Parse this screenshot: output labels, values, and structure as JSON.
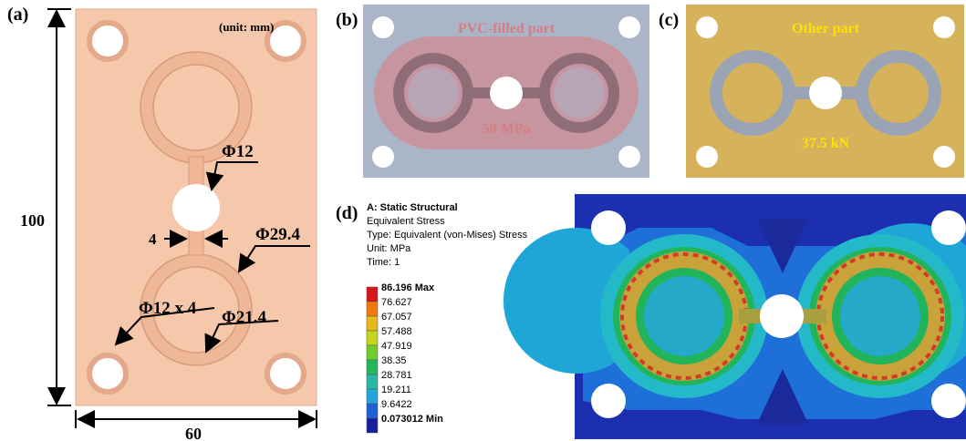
{
  "panel_a": {
    "label": "(a)",
    "unit": "(unit:  mm)",
    "dims": [
      "Φ12",
      "4",
      "Φ29.4",
      "Φ12 x 4",
      "Φ21.4"
    ],
    "height": "100",
    "width": "60"
  },
  "panel_b": {
    "label": "(b)",
    "title": "PVC-filled  part",
    "load": "50 MPa"
  },
  "panel_c": {
    "label": "(c)",
    "title": "Other part",
    "load": "37.5 kN"
  },
  "panel_d": {
    "label": "(d)",
    "info": [
      "A: Static Structural",
      "Equivalent Stress",
      "Type: Equivalent (von-Mises) Stress",
      "Unit: MPa",
      "Time: 1"
    ],
    "legend": [
      "86.196 Max",
      "76.627",
      "67.057",
      "57.488",
      "47.919",
      "38.35",
      "28.781",
      "19.211",
      "9.6422",
      "0.073012 Min"
    ]
  }
}
